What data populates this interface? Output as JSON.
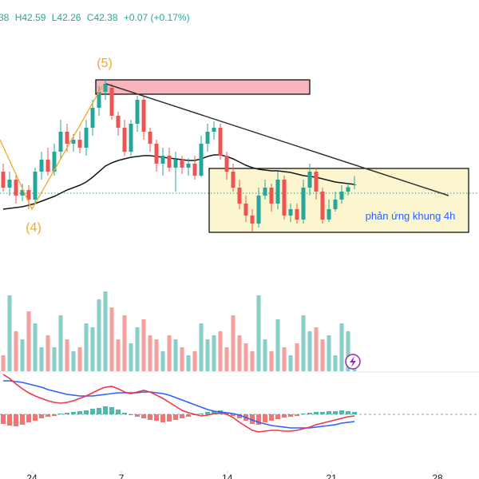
{
  "chart_data": {
    "type": "candlestick",
    "header": [
      "38",
      "H42.59",
      "L42.26",
      "C42.38",
      "+0.07 (+0.17%)"
    ],
    "up_color": "#26a69a",
    "down_color": "#ef5350",
    "ylim": [
      40.4,
      47
    ],
    "xticks": [
      {
        "value": 4.5,
        "label": "24"
      },
      {
        "value": 18.5,
        "label": "7"
      },
      {
        "value": 35.1,
        "label": "14"
      },
      {
        "value": 51.4,
        "label": "21"
      },
      {
        "value": 68,
        "label": "28"
      }
    ],
    "open": [
      42.7,
      42.3,
      42.5,
      42.1,
      42.24,
      42.0,
      42.7,
      43.0,
      42.7,
      43.2,
      43.7,
      43.4,
      43.5,
      43.3,
      43.8,
      44.3,
      44.7,
      44.8,
      44.1,
      43.8,
      43.2,
      43.9,
      44.5,
      43.7,
      43.4,
      42.9,
      43.1,
      42.8,
      43.0,
      42.8,
      42.9,
      42.6,
      43.4,
      43.7,
      43.8,
      43.1,
      42.7,
      42.3,
      41.9,
      41.6,
      41.4,
      42.1,
      42.3,
      41.9,
      42.5,
      41.6,
      41.76,
      41.5,
      42.3,
      42.7,
      42.2,
      41.5,
      41.76,
      42.0,
      42.2,
      42.38
    ],
    "high": [
      42.9,
      42.7,
      42.6,
      42.4,
      42.36,
      42.8,
      43.2,
      43.3,
      43.4,
      44.0,
      43.9,
      43.64,
      43.7,
      44.0,
      44.5,
      44.84,
      45.0,
      44.9,
      44.2,
      44.0,
      44.0,
      44.6,
      44.6,
      43.8,
      43.5,
      43.3,
      43.3,
      43.2,
      43.1,
      43.04,
      43.1,
      43.6,
      43.9,
      43.96,
      43.9,
      43.2,
      42.9,
      42.5,
      42.1,
      41.76,
      42.3,
      42.5,
      42.4,
      42.7,
      42.6,
      41.9,
      41.9,
      42.5,
      42.9,
      42.8,
      42.3,
      42.0,
      42.2,
      42.36,
      42.4,
      42.59
    ],
    "low": [
      42.2,
      42.1,
      41.9,
      41.96,
      41.76,
      41.9,
      42.5,
      42.6,
      42.6,
      43.0,
      43.2,
      43.2,
      43.16,
      43.1,
      43.6,
      44.1,
      44.5,
      44.0,
      43.6,
      43.1,
      43.1,
      43.7,
      43.5,
      43.2,
      42.7,
      42.6,
      42.7,
      42.2,
      42.64,
      42.6,
      42.5,
      42.56,
      43.2,
      43.5,
      43.0,
      42.5,
      42.2,
      41.76,
      41.44,
      41.2,
      41.3,
      42.0,
      41.7,
      41.76,
      41.5,
      41.44,
      41.4,
      41.4,
      42.1,
      42.0,
      41.4,
      41.44,
      41.7,
      41.9,
      42.1,
      42.26
    ],
    "close": [
      42.3,
      42.5,
      42.1,
      42.24,
      42.0,
      42.7,
      43.0,
      42.7,
      43.2,
      43.7,
      43.4,
      43.5,
      43.3,
      43.8,
      44.3,
      44.7,
      44.9,
      44.1,
      43.8,
      43.2,
      43.9,
      44.5,
      43.7,
      43.4,
      42.9,
      43.1,
      42.8,
      43.0,
      42.8,
      42.9,
      42.6,
      43.4,
      43.7,
      43.8,
      43.1,
      42.7,
      42.3,
      41.9,
      41.6,
      41.4,
      42.1,
      42.3,
      41.9,
      42.5,
      41.6,
      41.76,
      41.5,
      42.3,
      42.7,
      42.2,
      41.5,
      41.76,
      42.0,
      42.2,
      42.31,
      42.38
    ],
    "ma": {
      "color": "#131722",
      "values": [
        41.76,
        41.78,
        41.8,
        41.82,
        41.86,
        41.9,
        41.96,
        42.02,
        42.08,
        42.16,
        42.24,
        42.3,
        42.36,
        42.44,
        42.56,
        42.7,
        42.84,
        42.92,
        42.98,
        43.02,
        43.06,
        43.08,
        43.1,
        43.1,
        43.08,
        43.06,
        43.04,
        43.02,
        43.0,
        42.98,
        42.98,
        43.02,
        43.08,
        43.12,
        43.12,
        43.08,
        43.02,
        42.94,
        42.86,
        42.8,
        42.76,
        42.74,
        42.72,
        42.72,
        42.7,
        42.68,
        42.64,
        42.6,
        42.58,
        42.56,
        42.52,
        42.48,
        42.44,
        42.42,
        42.4,
        42.38
      ]
    },
    "volume": {
      "ylim": [
        0,
        120
      ],
      "values": [
        20,
        95,
        50,
        40,
        75,
        60,
        30,
        45,
        30,
        70,
        40,
        25,
        30,
        60,
        55,
        90,
        100,
        80,
        40,
        70,
        35,
        55,
        65,
        45,
        40,
        25,
        45,
        40,
        30,
        20,
        25,
        60,
        40,
        45,
        50,
        30,
        70,
        45,
        35,
        25,
        95,
        40,
        25,
        65,
        30,
        20,
        35,
        70,
        50,
        55,
        40,
        45,
        20,
        60,
        50,
        15
      ]
    },
    "macd": {
      "ylim": [
        -0.5,
        0.5
      ],
      "macd": {
        "color": "#f23645",
        "values": [
          0.5,
          0.45,
          0.38,
          0.32,
          0.27,
          0.23,
          0.2,
          0.17,
          0.15,
          0.14,
          0.15,
          0.17,
          0.2,
          0.23,
          0.27,
          0.31,
          0.34,
          0.35,
          0.32,
          0.28,
          0.26,
          0.28,
          0.3,
          0.28,
          0.24,
          0.2,
          0.15,
          0.1,
          0.05,
          0.02,
          0.0,
          -0.02,
          -0.01,
          0.01,
          0.02,
          0.0,
          -0.04,
          -0.1,
          -0.15,
          -0.2,
          -0.22,
          -0.21,
          -0.2,
          -0.2,
          -0.21,
          -0.21,
          -0.2,
          -0.18,
          -0.16,
          -0.13,
          -0.11,
          -0.09,
          -0.07,
          -0.05,
          -0.03,
          -0.02
        ]
      },
      "signal": {
        "color": "#2962ff",
        "values": [
          0.42,
          0.42,
          0.41,
          0.4,
          0.38,
          0.36,
          0.34,
          0.31,
          0.29,
          0.27,
          0.25,
          0.24,
          0.23,
          0.23,
          0.23,
          0.24,
          0.25,
          0.26,
          0.27,
          0.27,
          0.27,
          0.27,
          0.28,
          0.28,
          0.27,
          0.26,
          0.24,
          0.21,
          0.18,
          0.15,
          0.12,
          0.09,
          0.06,
          0.04,
          0.03,
          0.02,
          0.01,
          -0.01,
          -0.04,
          -0.07,
          -0.1,
          -0.12,
          -0.14,
          -0.15,
          -0.16,
          -0.17,
          -0.17,
          -0.17,
          -0.17,
          -0.16,
          -0.15,
          -0.14,
          -0.13,
          -0.11,
          -0.1,
          -0.09
        ]
      },
      "histogram": {
        "values": [
          -0.12,
          -0.14,
          -0.15,
          -0.13,
          -0.1,
          -0.08,
          -0.05,
          -0.03,
          -0.02,
          0.01,
          0.02,
          0.03,
          0.04,
          0.05,
          0.07,
          0.08,
          0.1,
          0.09,
          0.06,
          0.02,
          -0.01,
          -0.03,
          -0.05,
          -0.07,
          -0.08,
          -0.1,
          -0.09,
          -0.07,
          -0.05,
          -0.03,
          -0.01,
          0.01,
          0.03,
          0.04,
          0.05,
          0.02,
          -0.02,
          -0.05,
          -0.08,
          -0.12,
          -0.13,
          -0.1,
          -0.08,
          -0.06,
          -0.04,
          -0.03,
          -0.02,
          0.01,
          0.02,
          0.03,
          0.03,
          0.04,
          0.04,
          0.05,
          0.04,
          0.03
        ]
      }
    },
    "annotations": [
      "(5)",
      "(4)",
      "phản ứng khung 4h"
    ]
  }
}
